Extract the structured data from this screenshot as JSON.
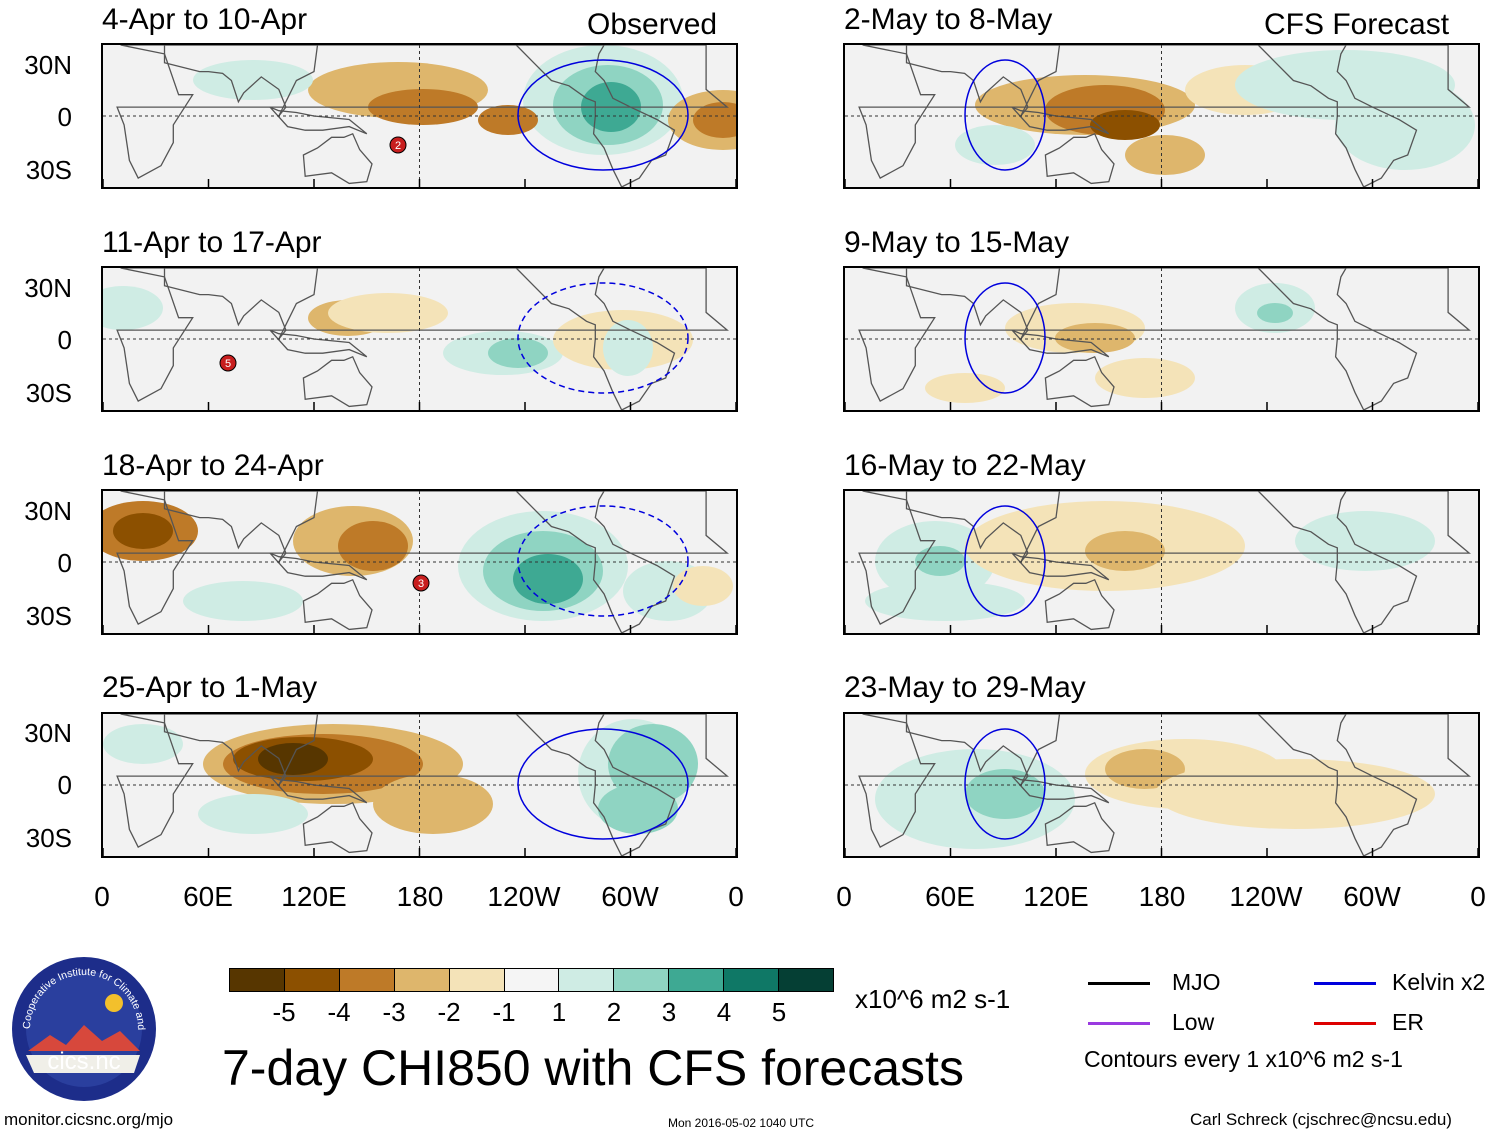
{
  "observed_label": "Observed",
  "forecast_label": "CFS Forecast",
  "lat_labels": [
    "30N",
    "0",
    "30S"
  ],
  "lon_labels": [
    "0",
    "60E",
    "120E",
    "180",
    "120W",
    "60W",
    "0"
  ],
  "panels_left": [
    {
      "title": "4-Apr to 10-Apr"
    },
    {
      "title": "11-Apr to 17-Apr"
    },
    {
      "title": "18-Apr to 24-Apr"
    },
    {
      "title": "25-Apr to 1-May"
    }
  ],
  "panels_right": [
    {
      "title": "2-May to 8-May"
    },
    {
      "title": "9-May to 15-May"
    },
    {
      "title": "16-May to 22-May"
    },
    {
      "title": "23-May to 29-May"
    }
  ],
  "colorbar": {
    "colors": [
      "#573600",
      "#8c5000",
      "#be7a28",
      "#deb66c",
      "#f4e3b8",
      "#f5f5f5",
      "#cfece4",
      "#8fd4c2",
      "#3ea993",
      "#0f7866",
      "#053f34"
    ],
    "labels": [
      "-5",
      "-4",
      "-3",
      "-2",
      "-1",
      "1",
      "2",
      "3",
      "4",
      "5"
    ],
    "units": "x10^6 m2 s-1"
  },
  "legend": {
    "items": [
      {
        "label": "MJO",
        "color": "#000000"
      },
      {
        "label": "Kelvin x2",
        "color": "#0000dd"
      },
      {
        "label": "Low",
        "color": "#9a3ae0"
      },
      {
        "label": "ER",
        "color": "#dd0000"
      }
    ],
    "contours_note": "Contours every 1 x10^6 m2 s-1"
  },
  "main_title": "7-day CHI850 with CFS forecasts",
  "logo_text": "cics.nc",
  "logo_ring_text": "Cooperative Institute for Climate and Satellites",
  "footer": {
    "url": "monitor.cicsnc.org/mjo",
    "timestamp": "Mon 2016-05-02 1040 UTC",
    "author": "Carl Schreck (cjschrec@ncsu.edu)"
  },
  "storm_labels": [
    "2",
    "5",
    "3"
  ]
}
